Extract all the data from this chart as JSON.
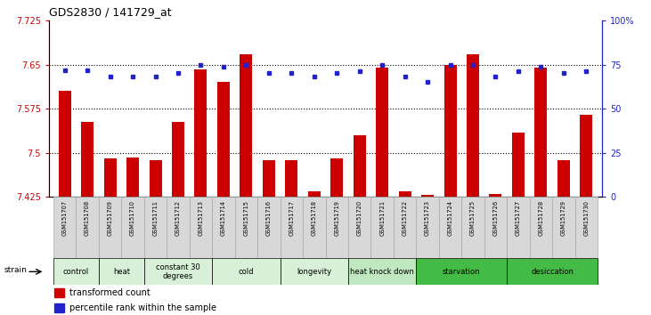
{
  "title": "GDS2830 / 141729_at",
  "samples": [
    "GSM151707",
    "GSM151708",
    "GSM151709",
    "GSM151710",
    "GSM151711",
    "GSM151712",
    "GSM151713",
    "GSM151714",
    "GSM151715",
    "GSM151716",
    "GSM151717",
    "GSM151718",
    "GSM151719",
    "GSM151720",
    "GSM151721",
    "GSM151722",
    "GSM151723",
    "GSM151724",
    "GSM151725",
    "GSM151726",
    "GSM151727",
    "GSM151728",
    "GSM151729",
    "GSM151730"
  ],
  "red_values": [
    7.605,
    7.553,
    7.49,
    7.492,
    7.488,
    7.552,
    7.642,
    7.62,
    7.668,
    7.487,
    7.487,
    7.435,
    7.49,
    7.53,
    7.645,
    7.435,
    7.428,
    7.65,
    7.668,
    7.43,
    7.535,
    7.645,
    7.488,
    7.565
  ],
  "blue_values": [
    72,
    72,
    68,
    68,
    68,
    70,
    75,
    74,
    75,
    70,
    70,
    68,
    70,
    71,
    75,
    68,
    65,
    75,
    75,
    68,
    71,
    74,
    70,
    71
  ],
  "ylim_left": [
    7.425,
    7.725
  ],
  "ylim_right": [
    0,
    100
  ],
  "yticks_left": [
    7.425,
    7.5,
    7.575,
    7.65,
    7.725
  ],
  "yticks_right": [
    0,
    25,
    50,
    75,
    100
  ],
  "ytick_labels_left": [
    "7.425",
    "7.5",
    "7.575",
    "7.65",
    "7.725"
  ],
  "ytick_labels_right": [
    "0",
    "25",
    "50",
    "75",
    "100%"
  ],
  "groups": [
    {
      "label": "control",
      "start": 0,
      "end": 2,
      "color": "#d8f0d8"
    },
    {
      "label": "heat",
      "start": 2,
      "end": 4,
      "color": "#d8f0d8"
    },
    {
      "label": "constant 30\ndegrees",
      "start": 4,
      "end": 7,
      "color": "#d8f0d8"
    },
    {
      "label": "cold",
      "start": 7,
      "end": 10,
      "color": "#d8f0d8"
    },
    {
      "label": "longevity",
      "start": 10,
      "end": 13,
      "color": "#d8f0d8"
    },
    {
      "label": "heat knock down",
      "start": 13,
      "end": 16,
      "color": "#c0e8c0"
    },
    {
      "label": "starvation",
      "start": 16,
      "end": 20,
      "color": "#44bb44"
    },
    {
      "label": "desiccation",
      "start": 20,
      "end": 24,
      "color": "#44bb44"
    }
  ],
  "bar_color": "#cc0000",
  "dot_color": "#2222cc",
  "left_axis_color": "#cc0000",
  "right_axis_color": "#2222cc",
  "sample_box_color": "#d8d8d8",
  "sample_box_edge": "#aaaaaa"
}
